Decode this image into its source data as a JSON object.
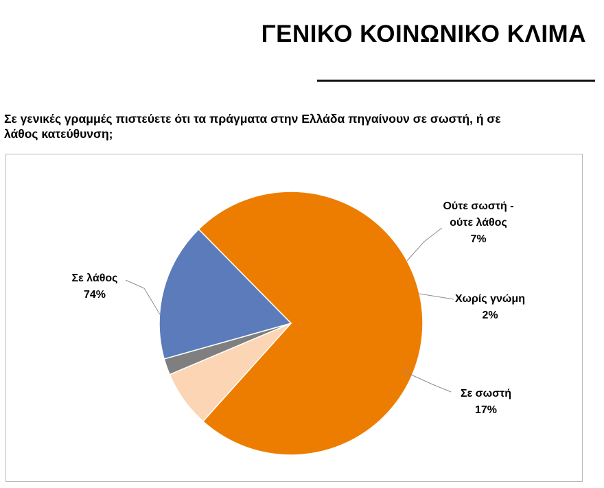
{
  "header": {
    "title": "ΓΕΝΙΚΟ ΚΟΙΝΩΝΙΚΟ ΚΛΙΜΑ",
    "question_line1": "Σε γενικές γραμμές πιστεύετε ότι τα πράγματα στην Ελλάδα πηγαίνουν σε σωστή, ή σε",
    "question_line2": "λάθος κατεύθυνση;"
  },
  "chart_data": {
    "type": "pie",
    "title": "",
    "slices": [
      {
        "name": "Σε λάθος",
        "value": 74,
        "percent_label": "74%",
        "color": "#ED7D00",
        "label_lines": [
          "Σε λάθος"
        ]
      },
      {
        "name": "Ούτε σωστή - ούτε λάθος",
        "value": 7,
        "percent_label": "7%",
        "color": "#FCD5B4",
        "label_lines": [
          "Ούτε σωστή -",
          "ούτε λάθος"
        ]
      },
      {
        "name": "Χωρίς γνώμη",
        "value": 2,
        "percent_label": "2%",
        "color": "#7F7F7F",
        "label_lines": [
          "Χωρίς γνώμη"
        ]
      },
      {
        "name": "Σε σωστή",
        "value": 17,
        "percent_label": "17%",
        "color": "#5B7BBA",
        "label_lines": [
          "Σε σωστή"
        ]
      }
    ],
    "legend": "none",
    "data_labels": "outside-with-leader-lines"
  }
}
